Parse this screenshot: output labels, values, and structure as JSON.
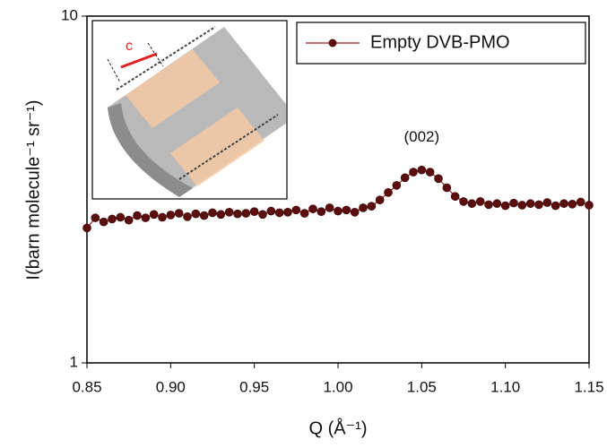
{
  "chart_data": {
    "type": "line",
    "xlabel": "Q (Å⁻¹)",
    "ylabel": "I(barn molecule⁻¹ sr⁻¹)",
    "annotation": "(002)",
    "inset_label": "c",
    "yscale": "log",
    "legend": "upper right",
    "xlim": [
      0.85,
      1.15
    ],
    "ylim": [
      1,
      10
    ],
    "xticks": [
      0.85,
      {
        "value": 0.9,
        "label": "0.90"
      },
      0.95,
      {
        "value": 1.0,
        "label": "1.00"
      },
      1.05,
      {
        "value": 1.1,
        "label": "1.10"
      },
      1.15
    ],
    "yticks": [
      1,
      10
    ],
    "x": [
      0.85,
      0.855,
      0.86,
      0.865,
      0.87,
      0.875,
      0.88,
      0.885,
      0.89,
      0.895,
      0.9,
      0.905,
      0.91,
      0.915,
      0.92,
      0.925,
      0.93,
      0.935,
      0.94,
      0.945,
      0.95,
      0.955,
      0.96,
      0.965,
      0.97,
      0.975,
      0.98,
      0.985,
      0.99,
      0.995,
      1.0,
      1.005,
      1.01,
      1.015,
      1.02,
      1.025,
      1.03,
      1.035,
      1.04,
      1.045,
      1.05,
      1.055,
      1.06,
      1.065,
      1.07,
      1.075,
      1.08,
      1.085,
      1.09,
      1.095,
      1.1,
      1.105,
      1.11,
      1.115,
      1.12,
      1.125,
      1.13,
      1.135,
      1.14,
      1.145,
      1.15
    ],
    "series": [
      {
        "name": "Empty DVB-PMO",
        "color": "#5c0d0d",
        "line_color": "#a01c1c",
        "values": [
          2.45,
          2.62,
          2.55,
          2.6,
          2.63,
          2.58,
          2.66,
          2.62,
          2.68,
          2.63,
          2.67,
          2.7,
          2.64,
          2.69,
          2.66,
          2.71,
          2.68,
          2.72,
          2.69,
          2.7,
          2.73,
          2.68,
          2.74,
          2.71,
          2.72,
          2.76,
          2.7,
          2.78,
          2.73,
          2.8,
          2.74,
          2.76,
          2.72,
          2.8,
          2.83,
          2.95,
          3.1,
          3.25,
          3.42,
          3.55,
          3.6,
          3.55,
          3.4,
          3.2,
          3.02,
          2.92,
          2.88,
          2.92,
          2.86,
          2.88,
          2.84,
          2.89,
          2.85,
          2.88,
          2.86,
          2.9,
          2.84,
          2.88,
          2.87,
          2.91,
          2.85
        ]
      }
    ]
  }
}
